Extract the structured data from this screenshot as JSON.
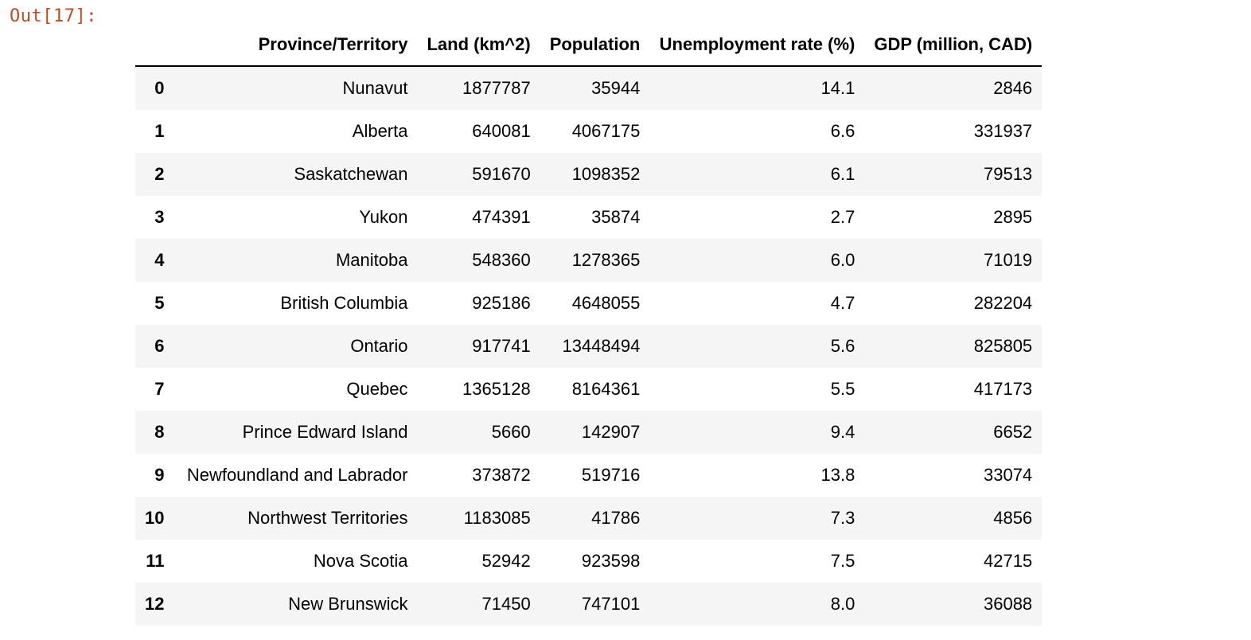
{
  "prompt": {
    "label": "Out[17]:"
  },
  "dataframe": {
    "index_header": "",
    "columns": [
      "Province/Territory",
      "Land (km^2)",
      "Population",
      "Unemployment rate (%)",
      "GDP (million, CAD)"
    ],
    "rows": [
      {
        "index": "0",
        "values": [
          "Nunavut",
          "1877787",
          "35944",
          "14.1",
          "2846"
        ]
      },
      {
        "index": "1",
        "values": [
          "Alberta",
          "640081",
          "4067175",
          "6.6",
          "331937"
        ]
      },
      {
        "index": "2",
        "values": [
          "Saskatchewan",
          "591670",
          "1098352",
          "6.1",
          "79513"
        ]
      },
      {
        "index": "3",
        "values": [
          "Yukon",
          "474391",
          "35874",
          "2.7",
          "2895"
        ]
      },
      {
        "index": "4",
        "values": [
          "Manitoba",
          "548360",
          "1278365",
          "6.0",
          "71019"
        ]
      },
      {
        "index": "5",
        "values": [
          "British Columbia",
          "925186",
          "4648055",
          "4.7",
          "282204"
        ]
      },
      {
        "index": "6",
        "values": [
          "Ontario",
          "917741",
          "13448494",
          "5.6",
          "825805"
        ]
      },
      {
        "index": "7",
        "values": [
          "Quebec",
          "1365128",
          "8164361",
          "5.5",
          "417173"
        ]
      },
      {
        "index": "8",
        "values": [
          "Prince Edward Island",
          "5660",
          "142907",
          "9.4",
          "6652"
        ]
      },
      {
        "index": "9",
        "values": [
          "Newfoundland and Labrador",
          "373872",
          "519716",
          "13.8",
          "33074"
        ]
      },
      {
        "index": "10",
        "values": [
          "Northwest Territories",
          "1183085",
          "41786",
          "7.3",
          "4856"
        ]
      },
      {
        "index": "11",
        "values": [
          "Nova Scotia",
          "52942",
          "923598",
          "7.5",
          "42715"
        ]
      },
      {
        "index": "12",
        "values": [
          "New Brunswick",
          "71450",
          "747101",
          "8.0",
          "36088"
        ]
      }
    ]
  },
  "colors": {
    "prompt": "#c04a26",
    "row_stripe": "#f5f5f5",
    "text": "#000000"
  }
}
